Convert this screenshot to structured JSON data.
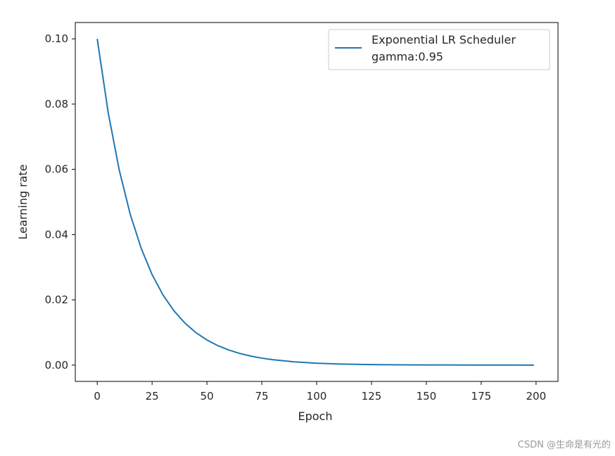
{
  "chart_data": {
    "type": "line",
    "title": "",
    "xlabel": "Epoch",
    "ylabel": "Learning rate",
    "xlim": [
      -10,
      210
    ],
    "ylim": [
      -0.005,
      0.105
    ],
    "xticks": [
      0,
      25,
      50,
      75,
      100,
      125,
      150,
      175,
      200
    ],
    "xtick_labels": [
      "0",
      "25",
      "50",
      "75",
      "100",
      "125",
      "150",
      "175",
      "200"
    ],
    "yticks": [
      0.0,
      0.02,
      0.04,
      0.06,
      0.08,
      0.1
    ],
    "ytick_labels": [
      "0.00",
      "0.02",
      "0.04",
      "0.06",
      "0.08",
      "0.10"
    ],
    "grid": false,
    "legend": {
      "placement": "top-right",
      "entries": [
        "Exponential LR Scheduler",
        "gamma:0.95"
      ]
    },
    "series": [
      {
        "name": "Exponential LR Scheduler\ngamma:0.95",
        "color": "#1f77b4",
        "x": [
          0,
          5,
          10,
          15,
          20,
          25,
          30,
          35,
          40,
          45,
          50,
          55,
          60,
          65,
          70,
          75,
          80,
          90,
          100,
          110,
          120,
          130,
          140,
          150,
          160,
          170,
          180,
          190,
          199
        ],
        "y": [
          0.1,
          0.07738,
          0.05987,
          0.04633,
          0.03585,
          0.02774,
          0.02146,
          0.01661,
          0.01285,
          0.00994,
          0.00769,
          0.00595,
          0.00461,
          0.00356,
          0.00276,
          0.00213,
          0.00165,
          0.00099,
          0.00059,
          0.00035,
          0.00021,
          0.00013,
          8e-05,
          5e-05,
          3e-05,
          2e-05,
          1e-05,
          1e-05,
          0.0
        ]
      }
    ]
  },
  "watermark": "CSDN @生命是有光的"
}
